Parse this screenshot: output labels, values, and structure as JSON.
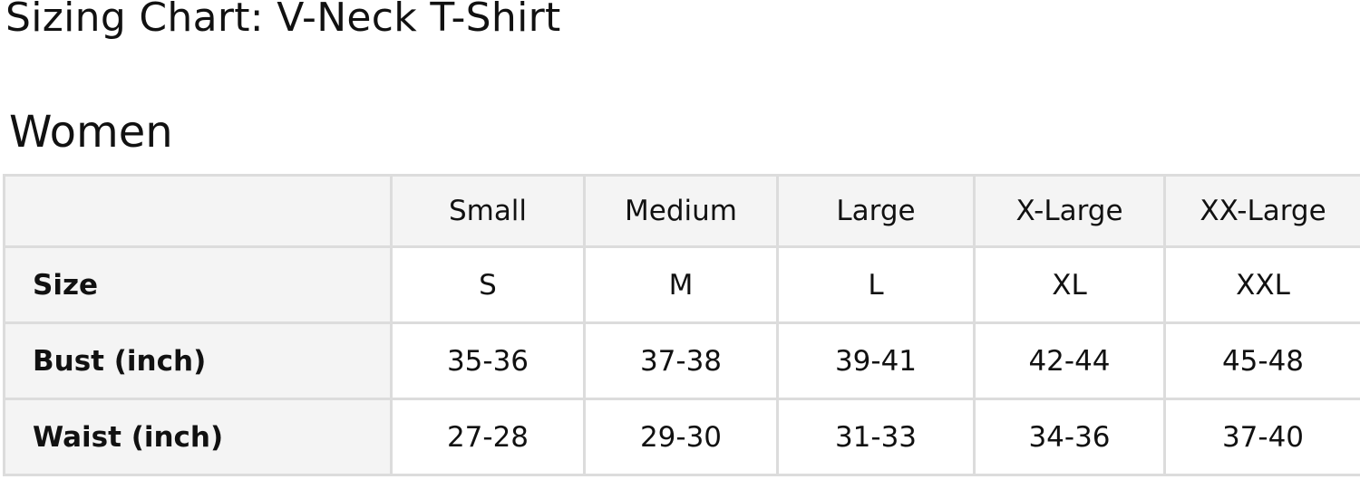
{
  "title": "Sizing Chart: V-Neck T-Shirt",
  "section": "Women",
  "table": {
    "columns": [
      "",
      "Small",
      "Medium",
      "Large",
      "X-Large",
      "XX-Large"
    ],
    "rows": [
      {
        "label": "Size",
        "values": [
          "S",
          "M",
          "L",
          "XL",
          "XXL"
        ]
      },
      {
        "label": "Bust (inch)",
        "values": [
          "35-36",
          "37-38",
          "39-41",
          "42-44",
          "45-48"
        ]
      },
      {
        "label": "Waist (inch)",
        "values": [
          "27-28",
          "29-30",
          "31-33",
          "34-36",
          "37-40"
        ]
      }
    ]
  }
}
